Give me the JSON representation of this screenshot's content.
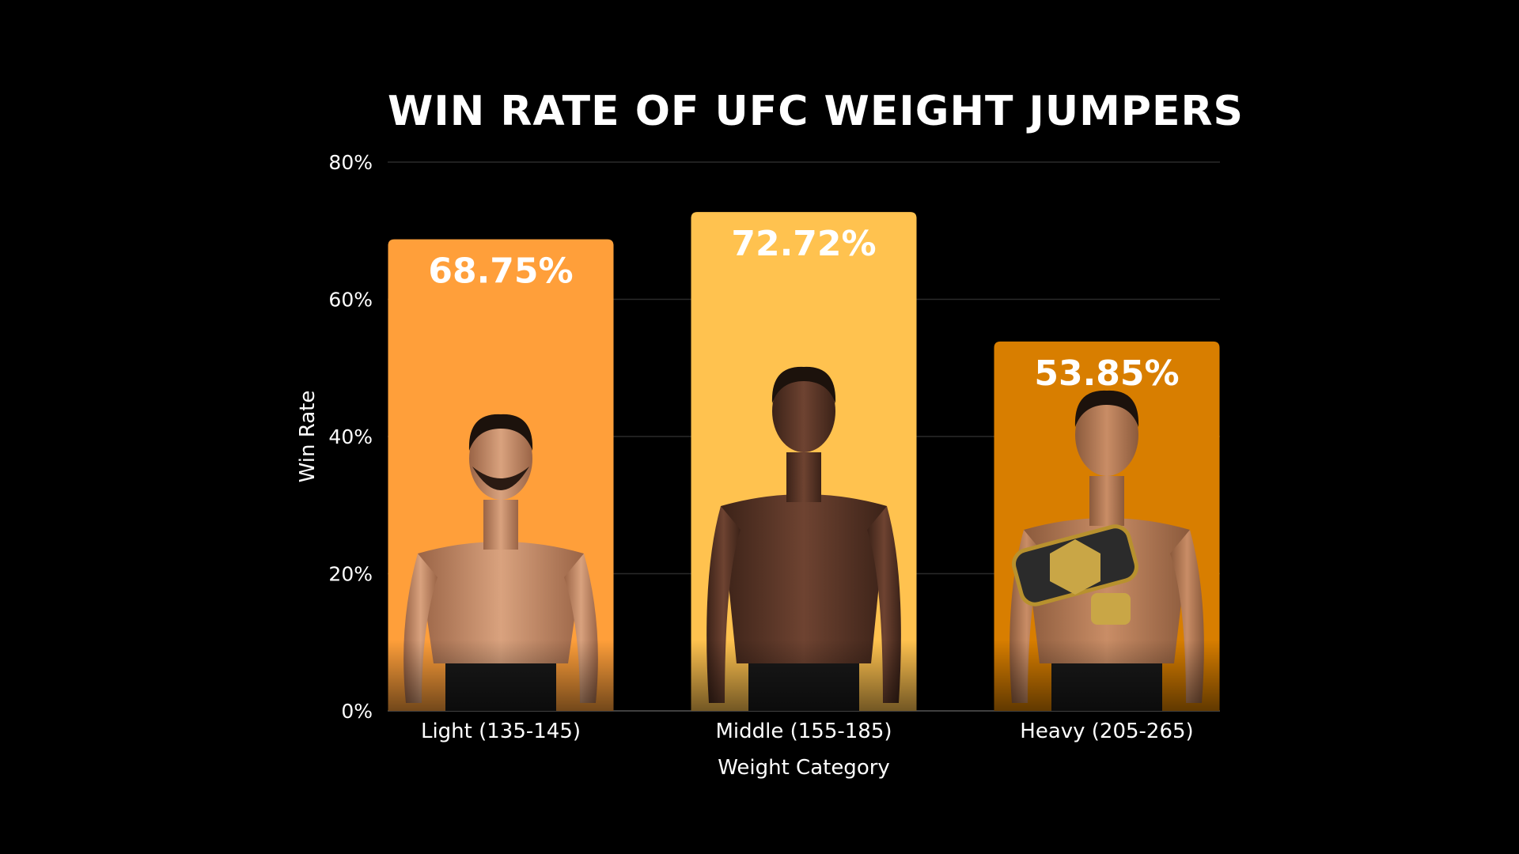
{
  "chart_data": {
    "type": "bar",
    "title": "WIN RATE OF UFC WEIGHT JUMPERS",
    "xlabel": "Weight Category",
    "ylabel": "Win Rate",
    "categories": [
      "Light (135-145)",
      "Middle (155-185)",
      "Heavy (205-265)"
    ],
    "values": [
      68.75,
      72.72,
      53.85
    ],
    "data_labels": [
      "68.75%",
      "72.72%",
      "53.85%"
    ],
    "ylim": [
      0,
      80
    ],
    "yticks": [
      0,
      20,
      40,
      60,
      80
    ],
    "ytick_labels": [
      "0%",
      "20%",
      "40%",
      "60%",
      "80%"
    ],
    "bar_colors": [
      "#FF9F3A",
      "#FFC24F",
      "#D87E00"
    ],
    "grid": true,
    "legend": "none",
    "bar_images": [
      "fighter-portrait",
      "fighter-portrait",
      "fighter-with-belt-portrait"
    ]
  }
}
